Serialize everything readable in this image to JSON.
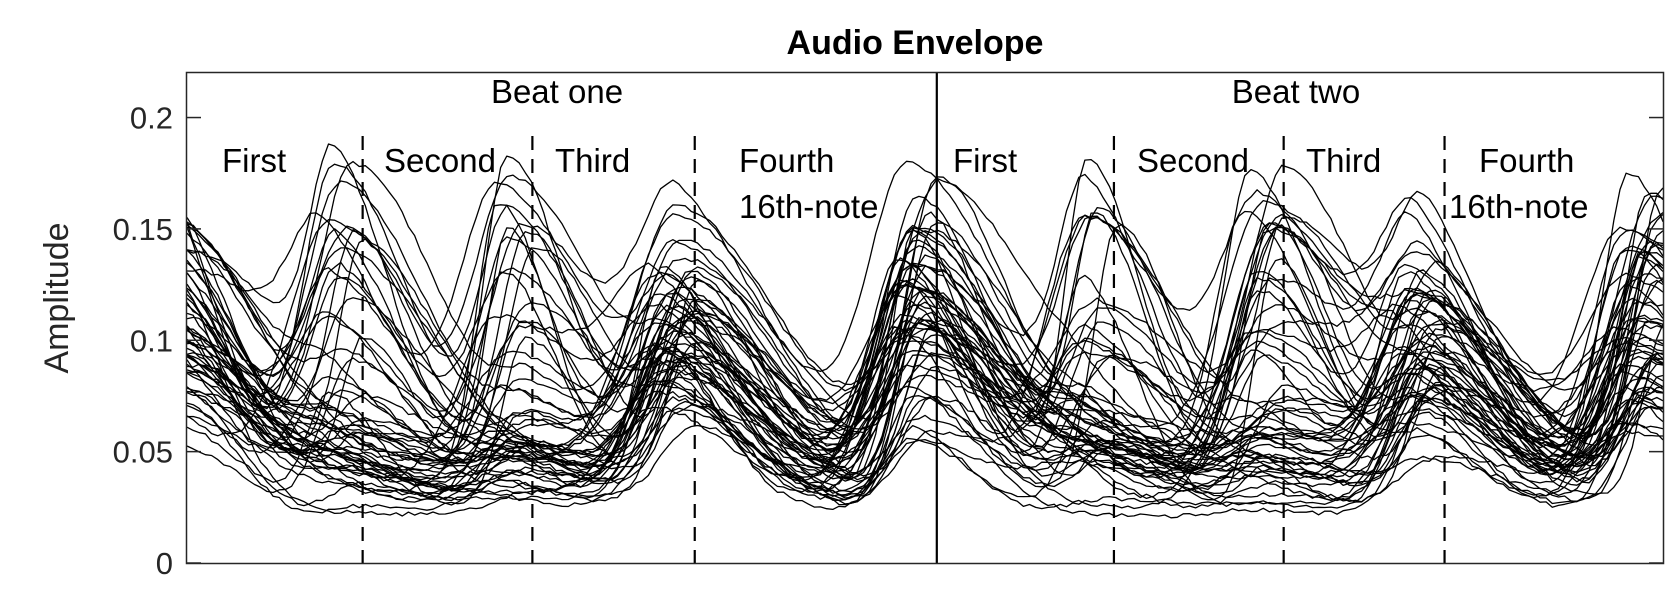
{
  "chart_data": {
    "type": "line",
    "title": "Audio Envelope",
    "xlabel": "",
    "ylabel": "Amplitude",
    "ylim": [
      0,
      0.22
    ],
    "xlim": [
      0,
      1
    ],
    "yticks": [
      0,
      0.05,
      0.1,
      0.15,
      0.2
    ],
    "ytick_labels": [
      "0",
      "0.05",
      "0.1",
      "0.15",
      "0.2"
    ],
    "xticks": [],
    "grid": false,
    "legend": "none",
    "beat_labels": [
      "Beat one",
      "Beat two"
    ],
    "sixteenth_labels": [
      "First",
      "Second",
      "Third",
      "Fourth",
      "16th-note"
    ],
    "beat_boundary": 0.508,
    "sixteenth_boundaries": [
      0.119,
      0.234,
      0.344,
      0.628,
      0.743,
      0.852
    ],
    "series_count": 60,
    "representative_series": [
      {
        "x": [
          0,
          0.05,
          0.1,
          0.119,
          0.17,
          0.234,
          0.28,
          0.344,
          0.38,
          0.45,
          0.508,
          0.56,
          0.628,
          0.68,
          0.743,
          0.8,
          0.852,
          0.9,
          1.0
        ],
        "y": [
          0.11,
          0.06,
          0.04,
          0.055,
          0.03,
          0.04,
          0.025,
          0.095,
          0.06,
          0.03,
          0.1,
          0.06,
          0.12,
          0.05,
          0.11,
          0.05,
          0.1,
          0.05,
          0.11
        ]
      },
      {
        "x": [
          0,
          0.05,
          0.1,
          0.119,
          0.17,
          0.234,
          0.28,
          0.344,
          0.38,
          0.45,
          0.508,
          0.56,
          0.628,
          0.68,
          0.743,
          0.8,
          0.852,
          0.9,
          1.0
        ],
        "y": [
          0.14,
          0.07,
          0.045,
          0.14,
          0.04,
          0.14,
          0.03,
          0.13,
          0.06,
          0.03,
          0.15,
          0.07,
          0.16,
          0.06,
          0.15,
          0.06,
          0.14,
          0.05,
          0.14
        ]
      },
      {
        "x": [
          0,
          0.05,
          0.1,
          0.119,
          0.17,
          0.234,
          0.28,
          0.344,
          0.38,
          0.45,
          0.508,
          0.56,
          0.628,
          0.68,
          0.743,
          0.8,
          0.852,
          0.9,
          1.0
        ],
        "y": [
          0.08,
          0.05,
          0.03,
          0.045,
          0.025,
          0.035,
          0.02,
          0.08,
          0.05,
          0.025,
          0.08,
          0.05,
          0.09,
          0.04,
          0.08,
          0.04,
          0.08,
          0.04,
          0.08
        ]
      }
    ]
  },
  "colors": {
    "line": "#000000",
    "axis": "#262626",
    "background": "#ffffff"
  }
}
